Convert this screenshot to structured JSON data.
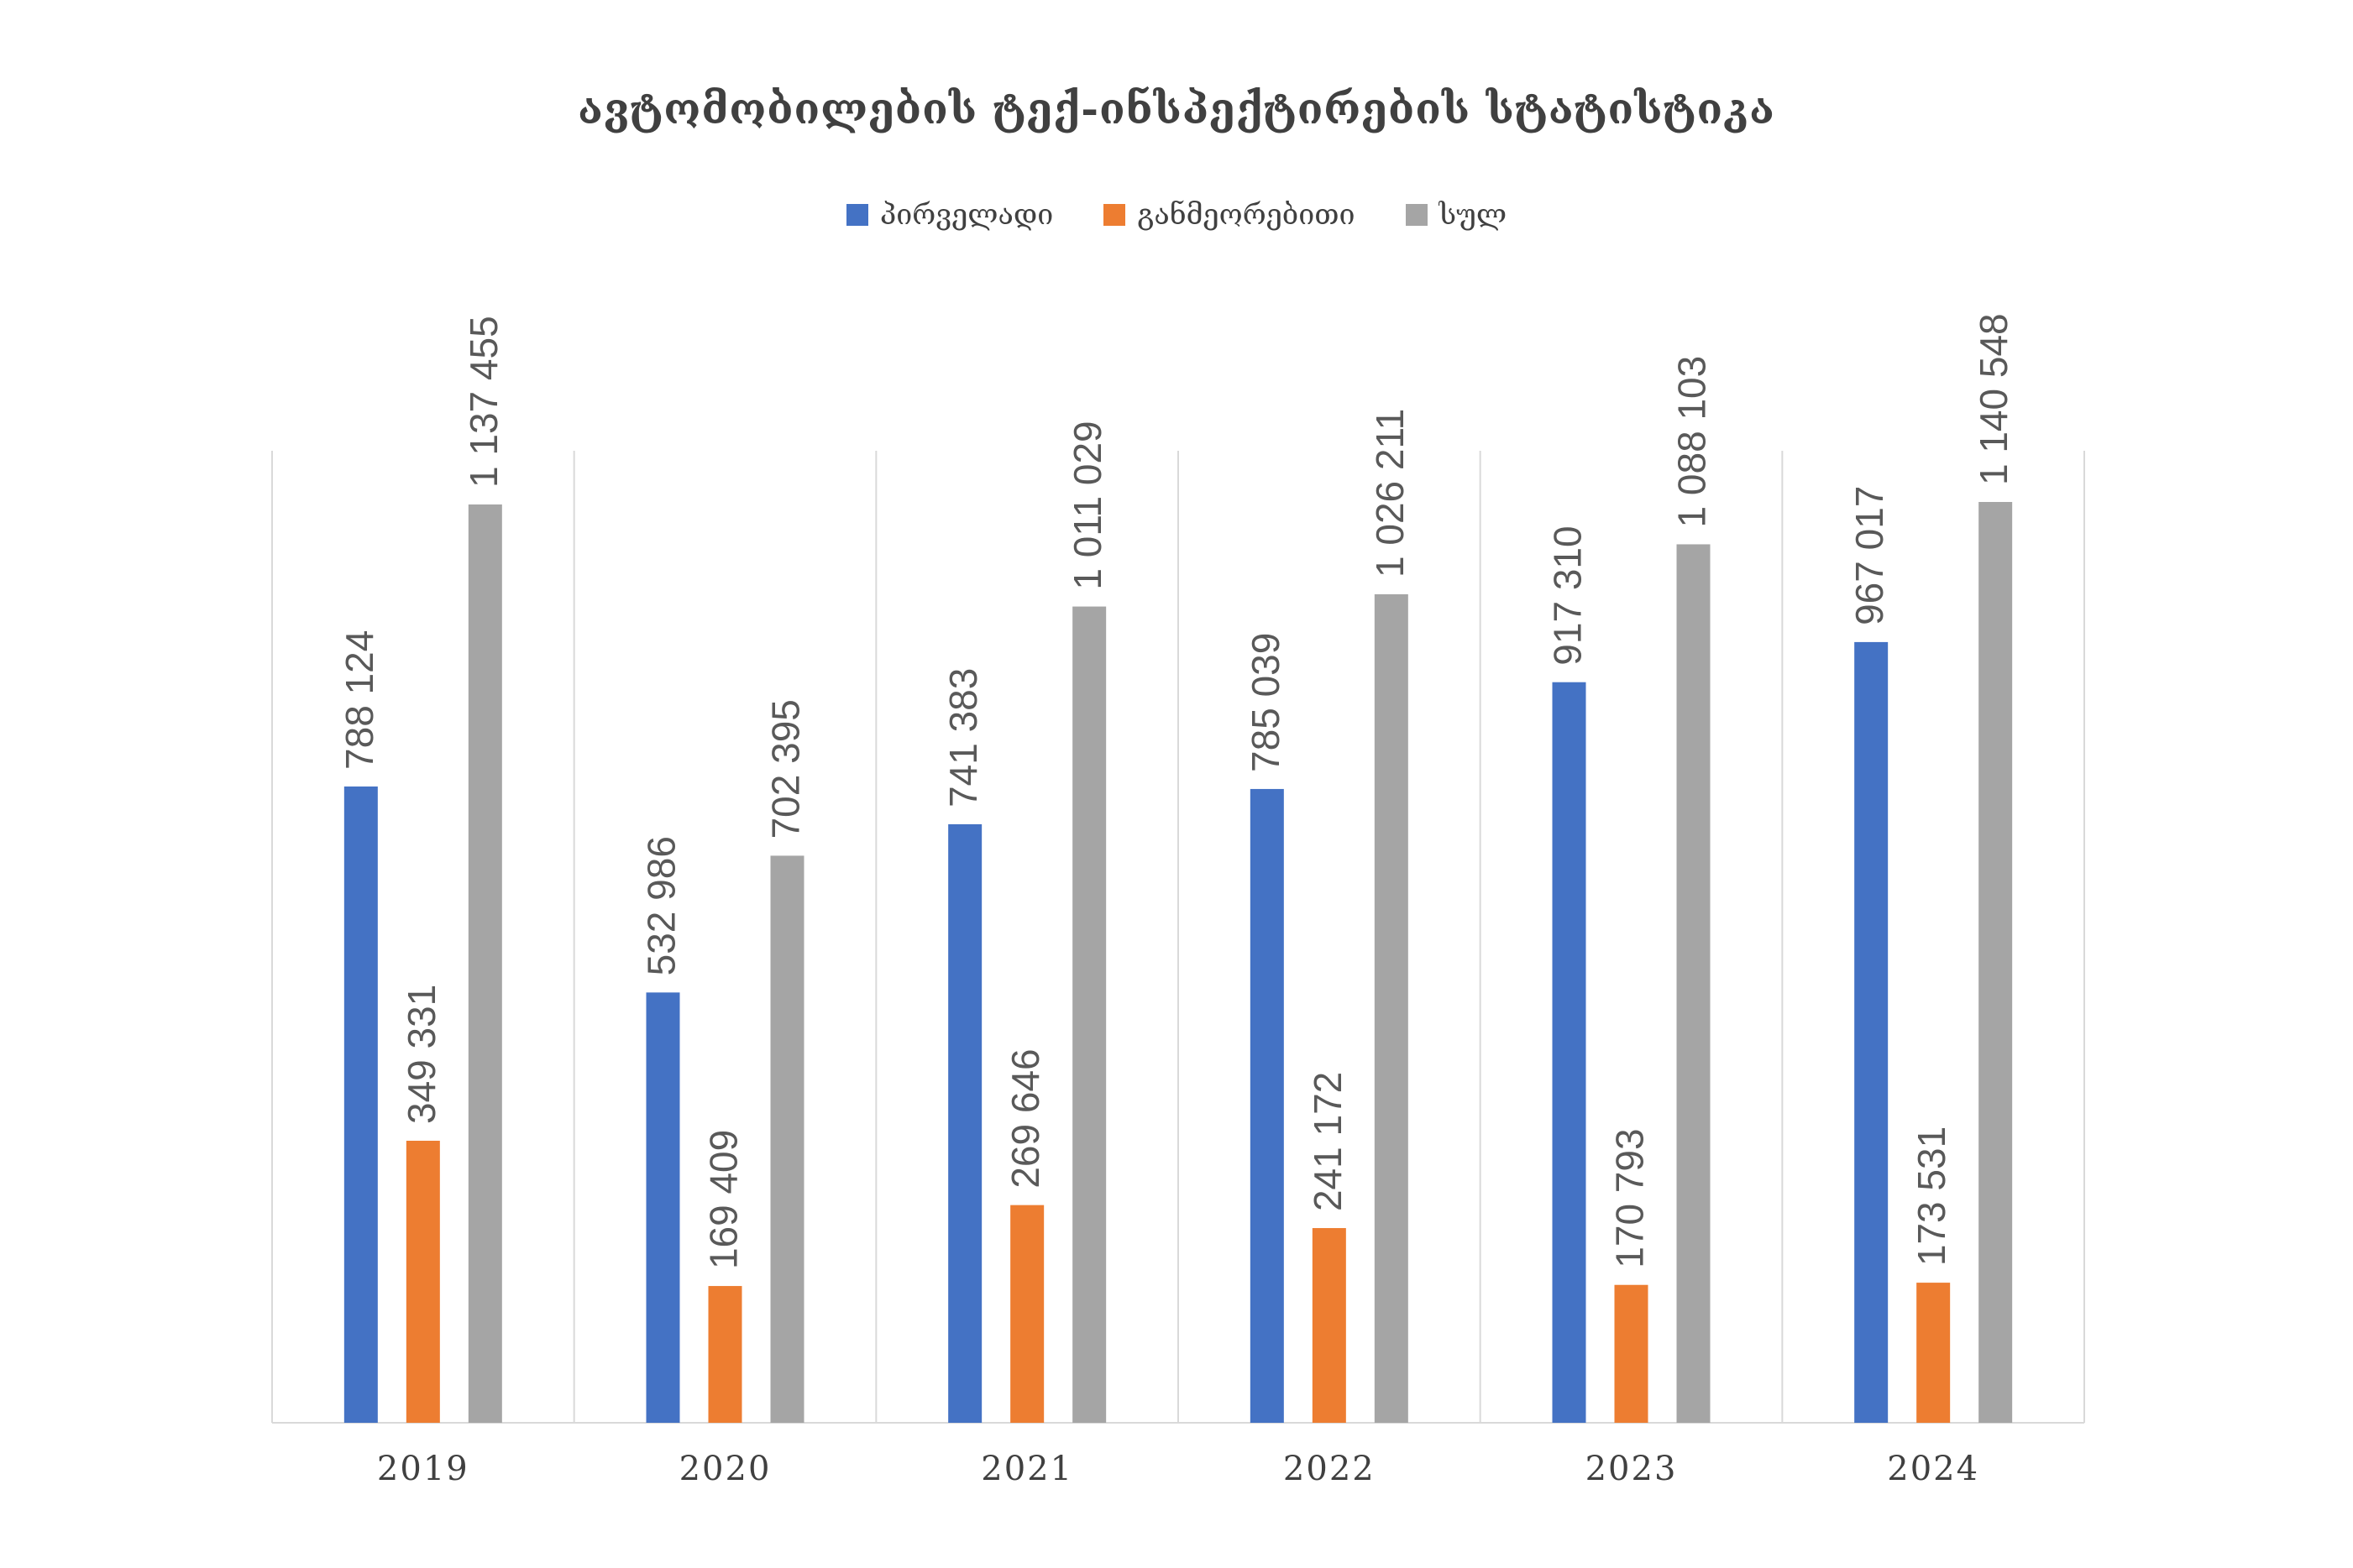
{
  "chart_data": {
    "type": "bar",
    "title": "ავტომობილების ტექ-ინსპექტირების სტატისტიკა",
    "categories": [
      "2019",
      "2020",
      "2021",
      "2022",
      "2023",
      "2024"
    ],
    "series": [
      {
        "name": "პირველადი",
        "color": "#4472C4",
        "values": [
          788124,
          532986,
          741383,
          785039,
          917310,
          967017
        ]
      },
      {
        "name": "განმეორებითი",
        "color": "#ED7D31",
        "values": [
          349331,
          169409,
          269646,
          241172,
          170793,
          173531
        ]
      },
      {
        "name": "სულ",
        "color": "#A5A5A5",
        "values": [
          1137455,
          702395,
          1011029,
          1026211,
          1088103,
          1140548
        ]
      }
    ],
    "data_labels": {
      "series_0": [
        "788 124",
        "532 986",
        "741 383",
        "785 039",
        "917 310",
        "967 017"
      ],
      "series_1": [
        "349 331",
        "169 409",
        "269 646",
        "241 172",
        "170 793",
        "173 531"
      ],
      "series_2": [
        "1 137 455",
        "702 395",
        "1 011 029",
        "1 026 211",
        "1 088 103",
        "1 140 548"
      ]
    },
    "ylim": [
      0,
      1200000
    ],
    "legend_position": "top",
    "grid": "vertical category separators",
    "xlabel": "",
    "ylabel": ""
  }
}
